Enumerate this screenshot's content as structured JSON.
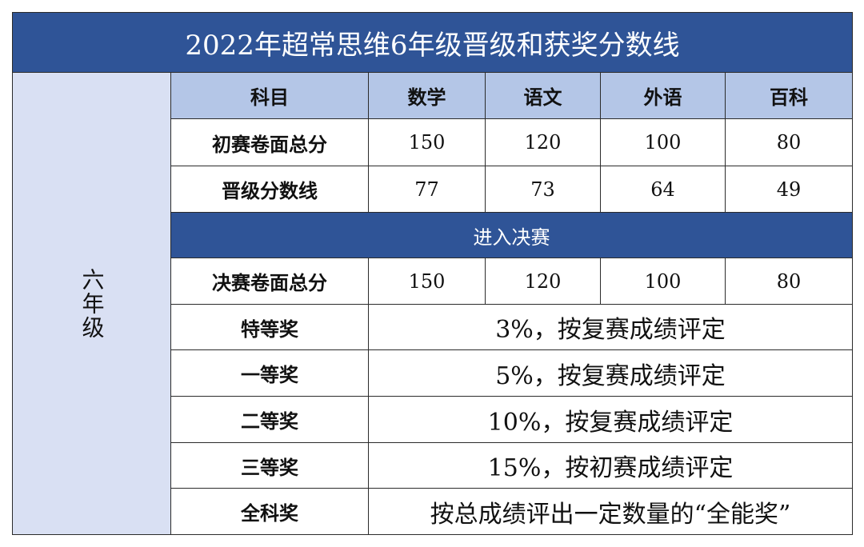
{
  "title": "2022年超常思维6年级晋级和获奖分数线",
  "side_label": "六年级",
  "header": [
    "科目",
    "数学",
    "语文",
    "外语",
    "百科"
  ],
  "rows": [
    [
      "初赛卷面总分",
      150,
      120,
      100,
      80
    ],
    [
      "晋级分数线",
      77,
      73,
      64,
      49
    ]
  ],
  "final_header": "进入决赛",
  "final_rows": [
    [
      "决赛卷面总分",
      150,
      120,
      100,
      80
    ]
  ],
  "awards": [
    [
      "特等奖",
      "3%，按复赛成绩评定"
    ],
    [
      "一等奖",
      "5%，按复赛成绩评定"
    ],
    [
      "二等奖",
      "10%，按复赛成绩评定"
    ],
    [
      "三等奖",
      "15%，按初赛成绩评定"
    ],
    [
      "全科奖",
      "按总成绩评出一定数量的“全能奖”"
    ]
  ]
}
